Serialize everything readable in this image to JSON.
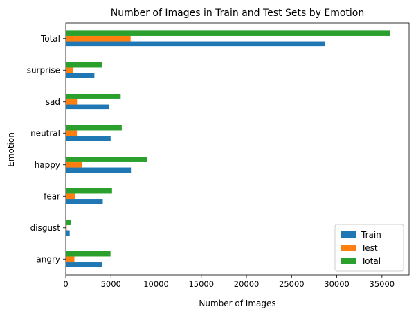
{
  "chart_data": {
    "type": "bar",
    "orientation": "horizontal",
    "title": "Number of Images in Train and Test Sets by Emotion",
    "xlabel": "Number of Images",
    "ylabel": "Emotion",
    "categories": [
      "angry",
      "disgust",
      "fear",
      "happy",
      "neutral",
      "sad",
      "surprise",
      "Total"
    ],
    "series": [
      {
        "name": "Train",
        "color": "#1f77b4",
        "values": [
          3995,
          436,
          4097,
          7215,
          4965,
          4830,
          3171,
          28709
        ]
      },
      {
        "name": "Test",
        "color": "#ff7f0e",
        "values": [
          958,
          111,
          1024,
          1774,
          1233,
          1247,
          831,
          7178
        ]
      },
      {
        "name": "Total",
        "color": "#2ca02c",
        "values": [
          4953,
          547,
          5121,
          8989,
          6198,
          6077,
          4002,
          35887
        ]
      }
    ],
    "xlim": [
      0,
      38000
    ],
    "xticks": [
      0,
      5000,
      10000,
      15000,
      20000,
      25000,
      30000,
      35000
    ],
    "grid": false,
    "legend": "bottom-right"
  }
}
